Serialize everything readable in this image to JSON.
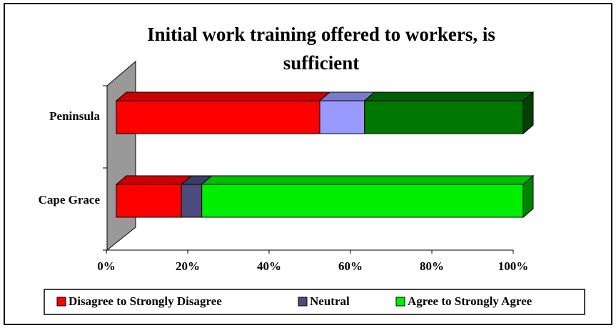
{
  "chart_data": {
    "type": "bar3d_stacked_horizontal",
    "title": "Initial work training offered to workers, is sufficient",
    "categories": [
      "Peninsula",
      "Cape Grace"
    ],
    "series": [
      {
        "name": "Disagree to Strongly Disagree",
        "color": "#ff0000",
        "colors": [
          "#ff0000",
          "#ff0000"
        ],
        "values": [
          50,
          16
        ]
      },
      {
        "name": "Neutral",
        "color": "#4b4b7d",
        "colors": [
          "#9999ff",
          "#4b4b7d"
        ],
        "values": [
          11,
          5
        ]
      },
      {
        "name": "Agree to Strongly Agree",
        "color": "#00ee00",
        "colors": [
          "#007700",
          "#00ee00"
        ],
        "values": [
          39,
          79
        ]
      }
    ],
    "xlim": [
      0,
      100
    ],
    "xticks": [
      {
        "value": 0,
        "label": "0%"
      },
      {
        "value": 20,
        "label": "20%"
      },
      {
        "value": 40,
        "label": "40%"
      },
      {
        "value": 60,
        "label": "60%"
      },
      {
        "value": 80,
        "label": "80%"
      },
      {
        "value": 100,
        "label": "100%"
      }
    ],
    "legend": "bottom"
  }
}
